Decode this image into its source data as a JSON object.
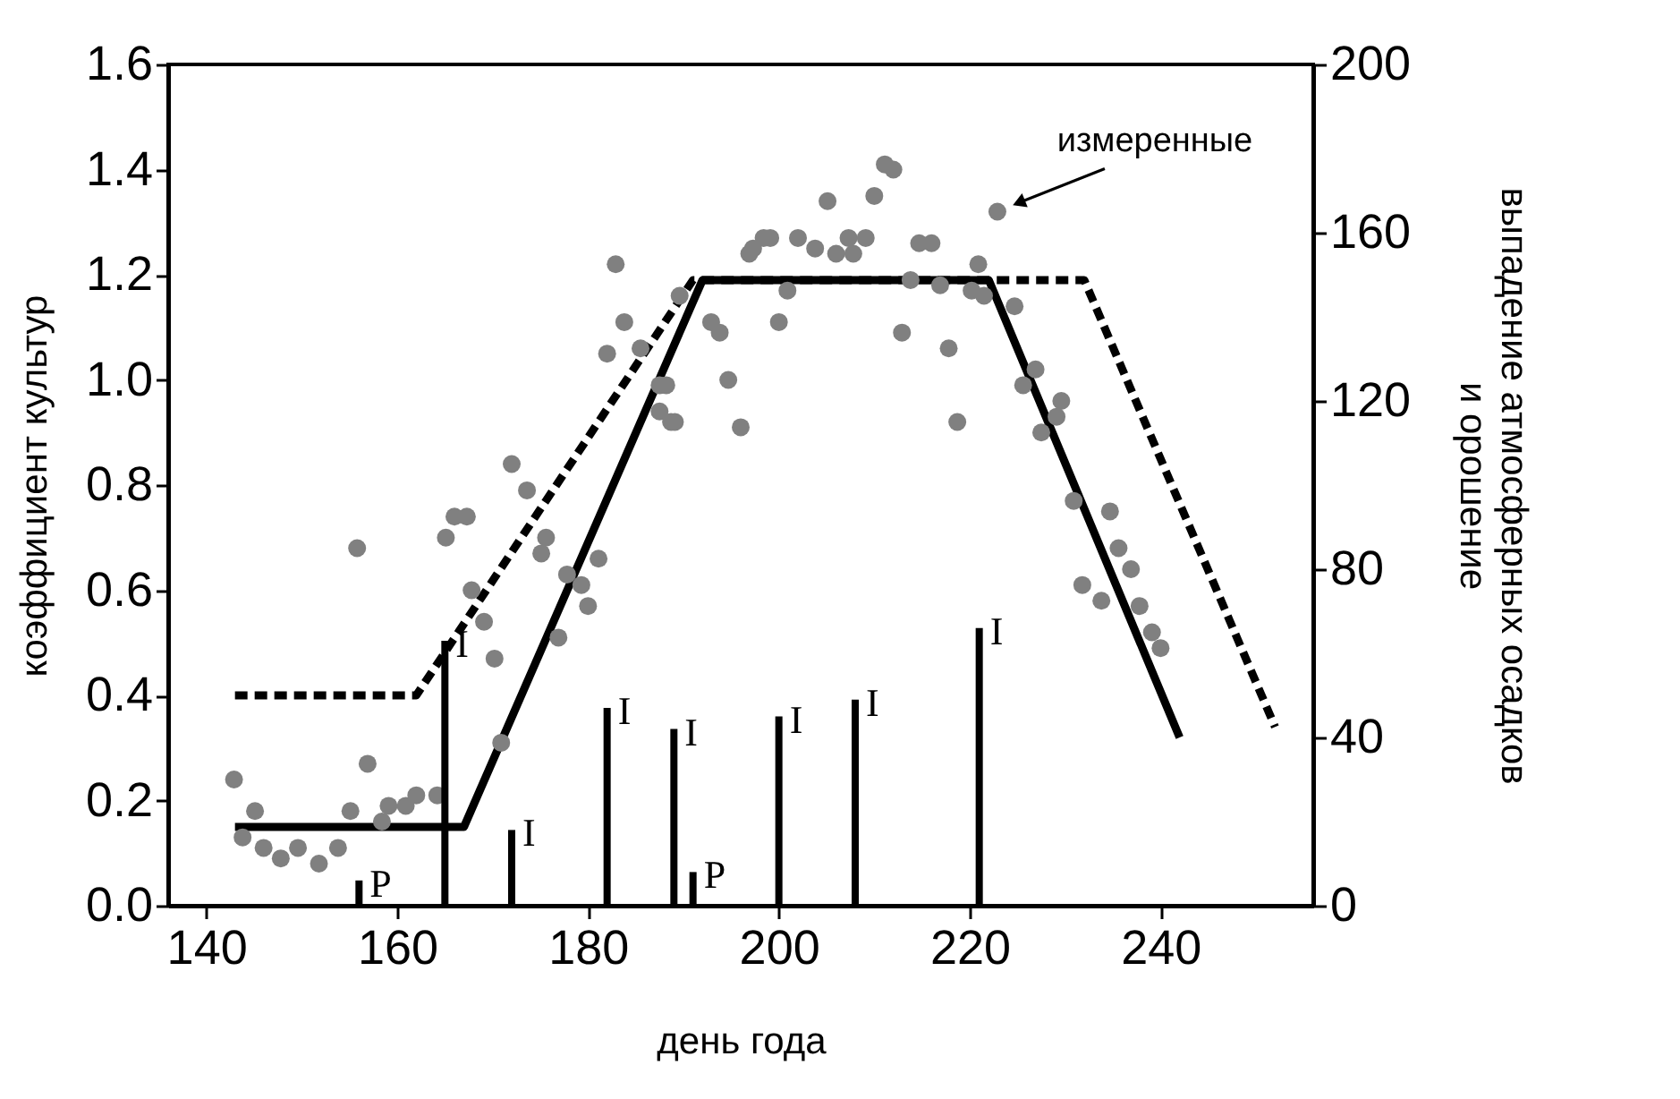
{
  "chart_data": {
    "type": "scatter",
    "xlabel": "день года",
    "ylabel": "коэффициент культур",
    "y2label": "выпадение атмосферных осадков\nи орошение",
    "xlim": [
      136,
      256
    ],
    "xticks": [
      140,
      160,
      180,
      200,
      220,
      240
    ],
    "ylim": [
      0,
      1.6
    ],
    "yticks": [
      {
        "value": 0,
        "label": "0.0"
      },
      0.2,
      0.4,
      0.6,
      0.8,
      {
        "value": 1,
        "label": "1.0"
      },
      1.2,
      1.4,
      1.6
    ],
    "y2lim": [
      0,
      200
    ],
    "y2ticks": [
      0,
      40,
      80,
      120,
      160,
      200
    ],
    "grid": false,
    "annotations": [
      {
        "text": "измеренные",
        "x": 222.9,
        "y": 1.32
      }
    ],
    "series": [
      {
        "color": "#808080",
        "marker": "circle",
        "x": [
          142.9,
          145.1,
          143.8,
          146,
          147.8,
          149.6,
          151.8,
          153.8,
          155.1,
          156.9,
          158.4,
          159.1,
          160.9,
          162,
          164.2,
          170.9,
          155.8,
          165.1,
          167.8,
          169.1,
          170.2,
          175.1,
          176.9,
          177.8,
          179.3,
          180,
          181.1,
          166,
          167.3,
          172,
          173.6,
          175.6,
          182.9,
          183.8,
          182,
          185.5,
          187.5,
          187.5,
          189.1,
          189.6,
          192.9,
          193.8,
          194.7,
          196,
          196.9,
          198.4,
          188.2,
          188.7,
          197.3,
          199.1,
          200.9,
          200,
          202,
          203.8,
          205.1,
          206,
          207.3,
          209.1,
          207.8,
          210,
          211.1,
          212,
          212.9,
          213.8,
          214.7,
          216,
          216.9,
          217.8,
          218.7,
          220.9,
          220.2,
          221.5,
          222.9,
          224.7,
          226.9,
          225.6,
          229.6,
          229.1,
          227.5,
          230.9,
          234.7,
          235.6,
          236.9,
          231.8,
          233.8,
          237.8,
          239.1,
          240
        ],
        "values": [
          0.24,
          0.18,
          0.13,
          0.11,
          0.09,
          0.11,
          0.08,
          0.11,
          0.18,
          0.27,
          0.16,
          0.19,
          0.19,
          0.21,
          0.21,
          0.31,
          0.68,
          0.7,
          0.6,
          0.54,
          0.47,
          0.67,
          0.51,
          0.63,
          0.61,
          0.57,
          0.66,
          0.74,
          0.74,
          0.84,
          0.79,
          0.7,
          1.22,
          1.11,
          1.05,
          1.06,
          0.99,
          0.94,
          0.92,
          1.16,
          1.11,
          1.09,
          1.0,
          0.91,
          1.24,
          1.27,
          0.99,
          0.92,
          1.25,
          1.27,
          1.17,
          1.11,
          1.27,
          1.25,
          1.34,
          1.24,
          1.27,
          1.27,
          1.24,
          1.35,
          1.41,
          1.4,
          1.09,
          1.19,
          1.26,
          1.26,
          1.18,
          1.06,
          0.92,
          1.22,
          1.17,
          1.16,
          1.32,
          1.14,
          1.02,
          0.99,
          0.96,
          0.93,
          0.9,
          0.77,
          0.75,
          0.68,
          0.64,
          0.61,
          0.58,
          0.57,
          0.52,
          0.49
        ]
      },
      {
        "type": "line",
        "color": "#000000",
        "line_style": "solid",
        "x": [
          143,
          167,
          192,
          222,
          242
        ],
        "values": [
          0.15,
          0.15,
          1.19,
          1.19,
          0.32
        ]
      },
      {
        "type": "line",
        "color": "#000000",
        "line_style": "dashed",
        "x": [
          143,
          162,
          191,
          232,
          252
        ],
        "values": [
          0.4,
          0.4,
          1.19,
          1.19,
          0.34
        ]
      },
      {
        "type": "bar",
        "axis": "y2",
        "color": "#000000",
        "x": [
          156,
          165,
          172,
          182,
          189,
          191,
          200,
          208,
          221
        ],
        "values": [
          6,
          63,
          18,
          47,
          42,
          8,
          45,
          49,
          66
        ],
        "value_labels": [
          "P",
          "I",
          "I",
          "I",
          "I",
          "P",
          "I",
          "I",
          "I"
        ]
      }
    ]
  }
}
